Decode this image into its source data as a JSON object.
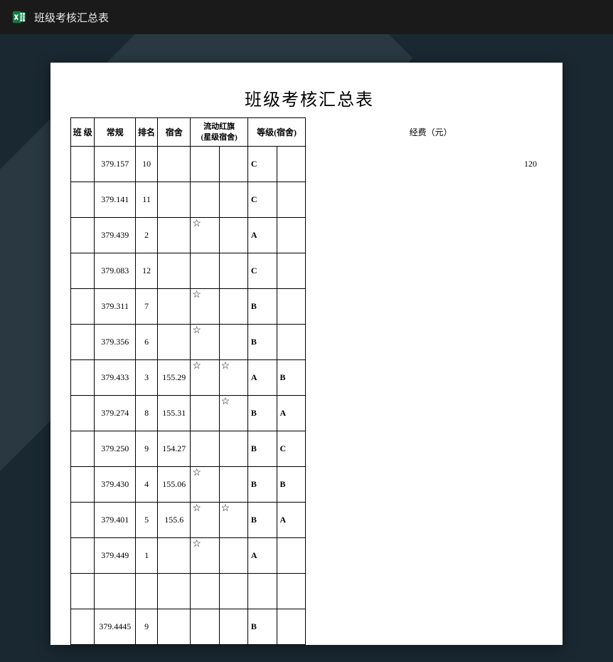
{
  "titlebar": {
    "label": "班级考核汇总表"
  },
  "document": {
    "title": "班级考核汇总表",
    "columns": {
      "class": "班  级",
      "routine": "常规",
      "rank": "排名",
      "dorm": "宿舍",
      "flag": "流动红旗\n(星级宿舍)",
      "grade": "等级(宿舍)"
    },
    "side": {
      "label": "经费（元）",
      "value": "120"
    },
    "star": "☆",
    "rows": [
      {
        "class": "",
        "routine": "379.157",
        "rank": "10",
        "dorm": "",
        "flag1": "",
        "flag2": "",
        "grade1": "C",
        "grade2": ""
      },
      {
        "class": "",
        "routine": "379.141",
        "rank": "11",
        "dorm": "",
        "flag1": "",
        "flag2": "",
        "grade1": "C",
        "grade2": ""
      },
      {
        "class": "",
        "routine": "379.439",
        "rank": "2",
        "dorm": "",
        "flag1": "☆",
        "flag2": "",
        "grade1": "A",
        "grade2": ""
      },
      {
        "class": "",
        "routine": "379.083",
        "rank": "12",
        "dorm": "",
        "flag1": "",
        "flag2": "",
        "grade1": "C",
        "grade2": ""
      },
      {
        "class": "",
        "routine": "379.311",
        "rank": "7",
        "dorm": "",
        "flag1": "☆",
        "flag2": "",
        "grade1": "B",
        "grade2": ""
      },
      {
        "class": "",
        "routine": "379.356",
        "rank": "6",
        "dorm": "",
        "flag1": "☆",
        "flag2": "",
        "grade1": "B",
        "grade2": ""
      },
      {
        "class": "",
        "routine": "379.433",
        "rank": "3",
        "dorm": "155.29",
        "flag1": "☆",
        "flag2": "☆",
        "grade1": "A",
        "grade2": "B"
      },
      {
        "class": "",
        "routine": "379.274",
        "rank": "8",
        "dorm": "155.31",
        "flag1": "",
        "flag2": "☆",
        "grade1": "B",
        "grade2": "A"
      },
      {
        "class": "",
        "routine": "379.250",
        "rank": "9",
        "dorm": "154.27",
        "flag1": "",
        "flag2": "",
        "grade1": "B",
        "grade2": "C"
      },
      {
        "class": "",
        "routine": "379.430",
        "rank": "4",
        "dorm": "155.06",
        "flag1": "☆",
        "flag2": "",
        "grade1": "B",
        "grade2": "B"
      },
      {
        "class": "",
        "routine": "379.401",
        "rank": "5",
        "dorm": "155.6",
        "flag1": "☆",
        "flag2": "☆",
        "grade1": "B",
        "grade2": "A"
      },
      {
        "class": "",
        "routine": "379.449",
        "rank": "1",
        "dorm": "",
        "flag1": "☆",
        "flag2": "",
        "grade1": "A",
        "grade2": ""
      },
      {
        "class": "",
        "routine": "",
        "rank": "",
        "dorm": "",
        "flag1": "",
        "flag2": "",
        "grade1": "",
        "grade2": ""
      },
      {
        "class": "",
        "routine": "379.4445",
        "rank": "9",
        "dorm": "",
        "flag1": "",
        "flag2": "",
        "grade1": "B",
        "grade2": ""
      }
    ]
  }
}
